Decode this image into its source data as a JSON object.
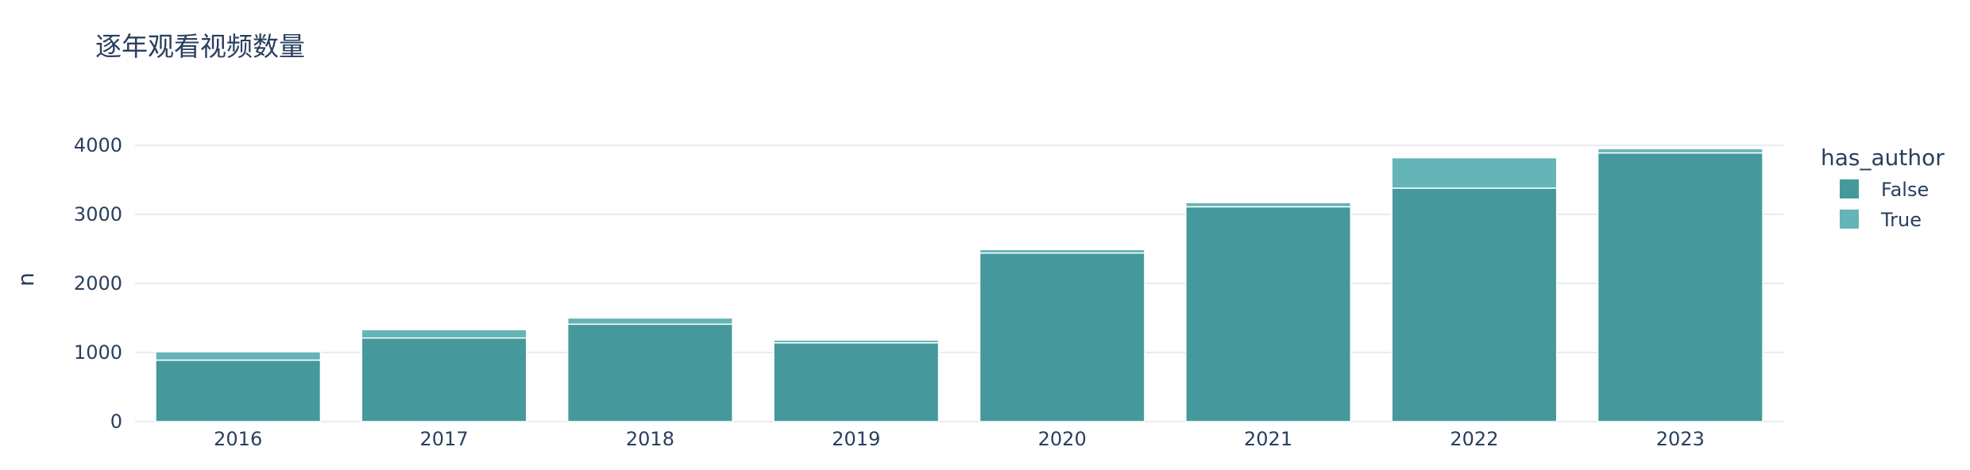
{
  "chart_data": {
    "type": "bar",
    "title": "逐年观看视频数量",
    "xlabel": "",
    "ylabel": "n",
    "categories": [
      "2016",
      "2017",
      "2018",
      "2019",
      "2020",
      "2021",
      "2022",
      "2023"
    ],
    "series": [
      {
        "name": "False",
        "values": [
          890,
          1210,
          1410,
          1140,
          2440,
          3110,
          3380,
          3890
        ]
      },
      {
        "name": "True",
        "values": [
          120,
          120,
          90,
          40,
          50,
          60,
          440,
          60
        ]
      }
    ],
    "stacked": true,
    "ylim": [
      0,
      4000
    ],
    "yticks": [
      0,
      1000,
      2000,
      3000,
      4000
    ],
    "grid": true,
    "legend": {
      "title": "has_author",
      "position": "right"
    },
    "colors": {
      "False": "#45999c",
      "True": "#65b4b7",
      "grid": "#e8ebf0",
      "bar_edge": "#ffffff"
    }
  }
}
